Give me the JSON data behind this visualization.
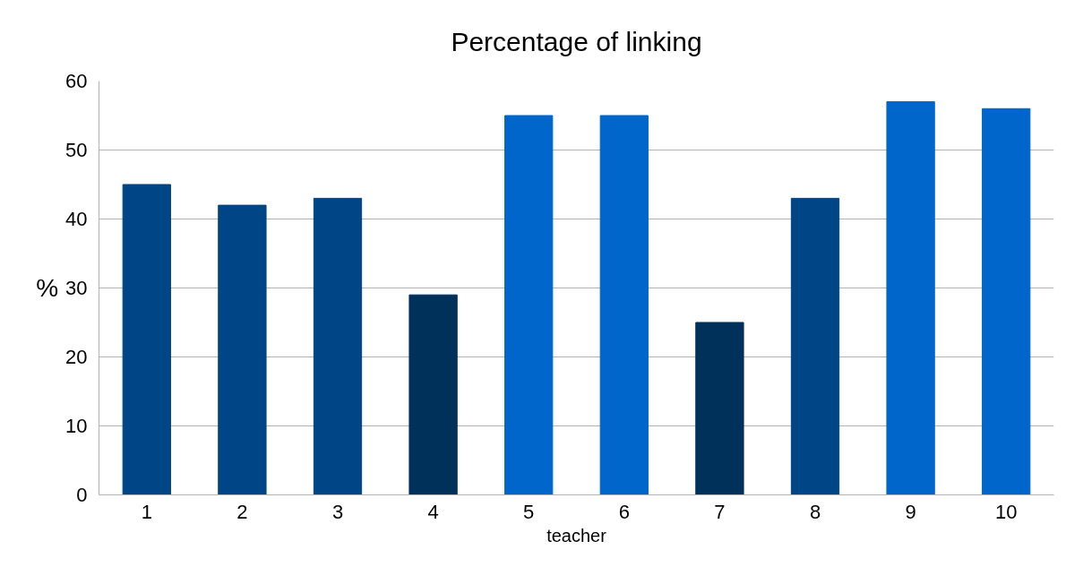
{
  "chart_data": {
    "type": "bar",
    "title": "Percentage of linking",
    "xlabel": "teacher",
    "ylabel": "%",
    "categories": [
      "1",
      "2",
      "3",
      "4",
      "5",
      "6",
      "7",
      "8",
      "9",
      "10"
    ],
    "values": [
      45,
      42,
      43,
      29,
      55,
      55,
      25,
      43,
      57,
      56
    ],
    "colors": [
      "#004586",
      "#004586",
      "#004586",
      "#00315a",
      "#0066cc",
      "#0066cc",
      "#00315a",
      "#004586",
      "#0066cc",
      "#0066cc"
    ],
    "ylim": [
      0,
      60
    ],
    "yticks": [
      0,
      10,
      20,
      30,
      40,
      50,
      60
    ],
    "grid": "y"
  }
}
